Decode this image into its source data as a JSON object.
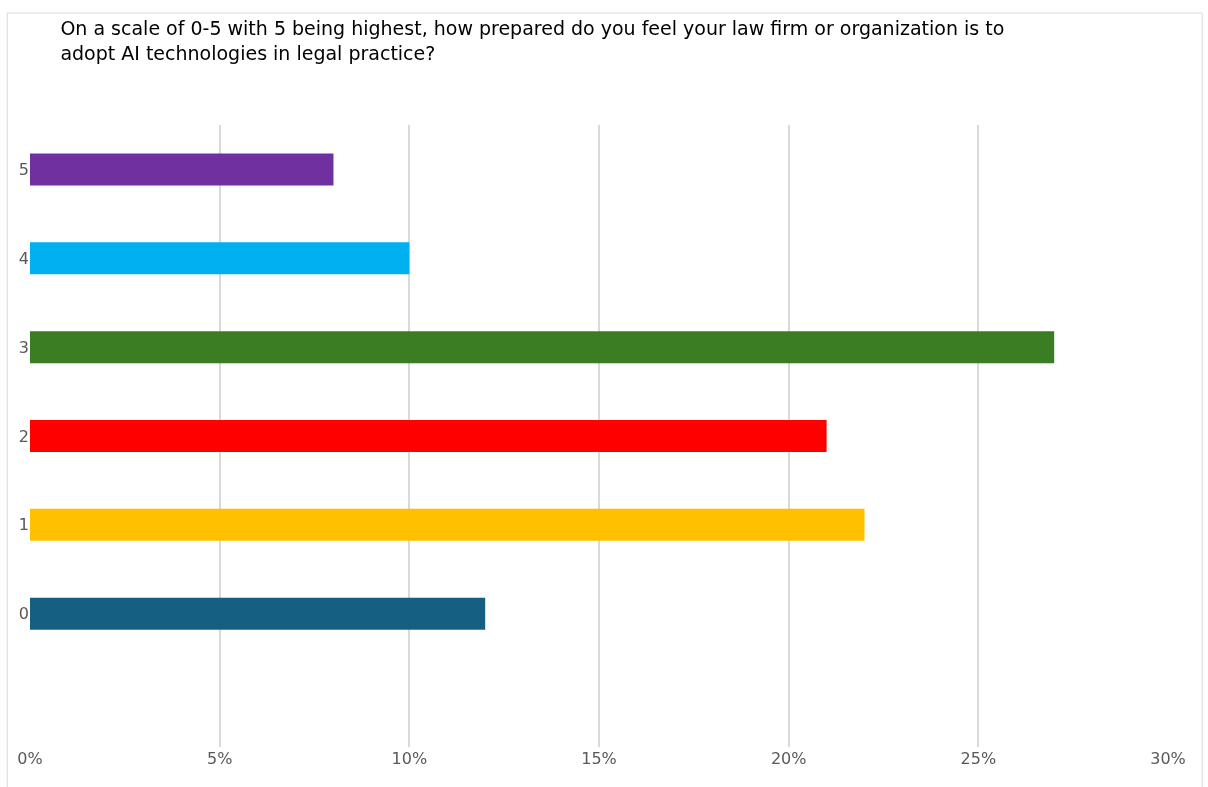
{
  "chart_data": {
    "type": "bar",
    "orientation": "horizontal",
    "title": "On a scale of 0-5 with 5 being highest, how prepared do you feel your law firm or organization is to adopt AI technologies in legal practice?",
    "categories": [
      "5",
      "4",
      "3",
      "2",
      "1",
      "0",
      null
    ],
    "values": [
      8,
      10,
      27,
      21,
      22,
      12,
      null
    ],
    "colors": [
      "#7030a0",
      "#00b0f0",
      "#3a7d22",
      "#ff0000",
      "#ffc000",
      "#156082",
      "#156082"
    ],
    "xlim": [
      0,
      30
    ],
    "xticks": [
      {
        "value": 0,
        "label": "0%"
      },
      {
        "value": 5,
        "label": "5%"
      },
      {
        "value": 10,
        "label": "10%"
      },
      {
        "value": 15,
        "label": "15%"
      },
      {
        "value": 20,
        "label": "20%"
      },
      {
        "value": 25,
        "label": "25%"
      },
      {
        "value": 30,
        "label": "30%"
      }
    ],
    "grid": "x"
  }
}
